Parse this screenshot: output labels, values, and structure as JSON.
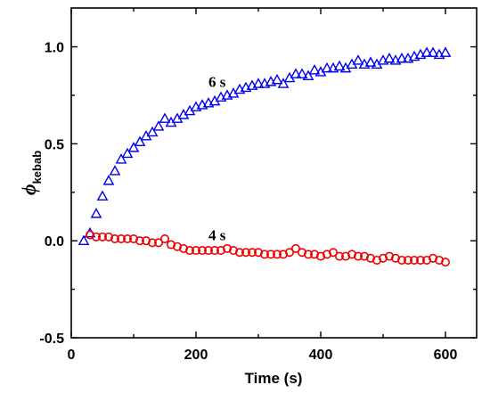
{
  "chart_data": {
    "type": "scatter",
    "title": "",
    "xlabel": "Time (s)",
    "ylabel_symbol": "ϕ",
    "ylabel_subscript": "kebab",
    "xlim": [
      0,
      650
    ],
    "ylim": [
      -0.5,
      1.2
    ],
    "xticks": [
      0,
      200,
      400,
      600
    ],
    "xtick_labels": [
      "0",
      "200",
      "400",
      "600"
    ],
    "yticks": [
      -0.5,
      0.0,
      0.5,
      1.0
    ],
    "ytick_labels": [
      "-0.5",
      "0.0",
      "0.5",
      "1.0"
    ],
    "grid": false,
    "series": [
      {
        "name": "6 s",
        "marker": "triangle",
        "color": "#0000ee",
        "x": [
          20,
          30,
          40,
          50,
          60,
          70,
          80,
          90,
          100,
          110,
          120,
          130,
          140,
          150,
          160,
          170,
          180,
          190,
          200,
          210,
          220,
          230,
          240,
          250,
          260,
          270,
          280,
          290,
          300,
          310,
          320,
          330,
          340,
          350,
          360,
          370,
          380,
          390,
          400,
          410,
          420,
          430,
          440,
          450,
          460,
          470,
          480,
          490,
          500,
          510,
          520,
          530,
          540,
          550,
          560,
          570,
          580,
          590,
          600
        ],
        "y": [
          0.0,
          0.04,
          0.14,
          0.23,
          0.31,
          0.36,
          0.42,
          0.45,
          0.48,
          0.51,
          0.54,
          0.56,
          0.59,
          0.63,
          0.61,
          0.63,
          0.65,
          0.67,
          0.69,
          0.7,
          0.71,
          0.72,
          0.74,
          0.75,
          0.76,
          0.78,
          0.79,
          0.8,
          0.81,
          0.81,
          0.82,
          0.83,
          0.81,
          0.84,
          0.86,
          0.86,
          0.85,
          0.88,
          0.87,
          0.89,
          0.89,
          0.9,
          0.89,
          0.91,
          0.93,
          0.91,
          0.92,
          0.91,
          0.93,
          0.94,
          0.93,
          0.94,
          0.94,
          0.95,
          0.96,
          0.97,
          0.97,
          0.96,
          0.97
        ]
      },
      {
        "name": "4 s",
        "marker": "circle",
        "color": "#ee0000",
        "x": [
          30,
          40,
          50,
          60,
          70,
          80,
          90,
          100,
          110,
          120,
          130,
          140,
          150,
          160,
          170,
          180,
          190,
          200,
          210,
          220,
          230,
          240,
          250,
          260,
          270,
          280,
          290,
          300,
          310,
          320,
          330,
          340,
          350,
          360,
          370,
          380,
          390,
          400,
          410,
          420,
          430,
          440,
          450,
          460,
          470,
          480,
          490,
          500,
          510,
          520,
          530,
          540,
          550,
          560,
          570,
          580,
          590,
          600
        ],
        "y": [
          0.03,
          0.02,
          0.02,
          0.02,
          0.01,
          0.01,
          0.01,
          0.01,
          0.0,
          0.0,
          -0.01,
          -0.01,
          0.01,
          -0.02,
          -0.03,
          -0.04,
          -0.05,
          -0.05,
          -0.05,
          -0.05,
          -0.05,
          -0.05,
          -0.04,
          -0.05,
          -0.06,
          -0.06,
          -0.06,
          -0.06,
          -0.07,
          -0.07,
          -0.07,
          -0.07,
          -0.06,
          -0.04,
          -0.06,
          -0.07,
          -0.07,
          -0.08,
          -0.07,
          -0.06,
          -0.08,
          -0.08,
          -0.07,
          -0.08,
          -0.08,
          -0.09,
          -0.1,
          -0.09,
          -0.08,
          -0.09,
          -0.1,
          -0.1,
          -0.1,
          -0.1,
          -0.1,
          -0.09,
          -0.1,
          -0.11
        ]
      }
    ],
    "annotations": [
      {
        "text": "6 s",
        "x": 220,
        "y": 0.82
      },
      {
        "text": "4 s",
        "x": 220,
        "y": 0.03
      }
    ]
  }
}
